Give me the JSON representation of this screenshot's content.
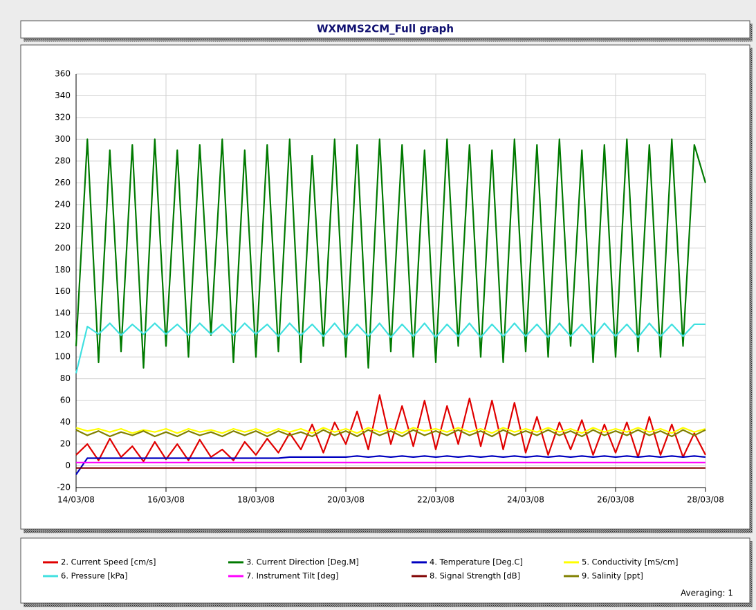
{
  "chart_data": {
    "type": "line",
    "title": "WXMMS2CM_Full graph",
    "note": "Averaging: 1",
    "x": [
      0,
      0.25,
      0.5,
      0.75,
      1,
      1.25,
      1.5,
      1.75,
      2,
      2.25,
      2.5,
      2.75,
      3,
      3.25,
      3.5,
      3.75,
      4,
      4.25,
      4.5,
      4.75,
      5,
      5.25,
      5.5,
      5.75,
      6,
      6.25,
      6.5,
      6.75,
      7,
      7.25,
      7.5,
      7.75,
      8,
      8.25,
      8.5,
      8.75,
      9,
      9.25,
      9.5,
      9.75,
      10,
      10.25,
      10.5,
      10.75,
      11,
      11.25,
      11.5,
      11.75,
      12,
      12.25,
      12.5,
      12.75,
      13,
      13.25,
      13.5,
      13.75,
      14
    ],
    "xlim": [
      0,
      14
    ],
    "xticks": [
      {
        "value": 0,
        "label": "14/03/08"
      },
      {
        "value": 2,
        "label": "16/03/08"
      },
      {
        "value": 4,
        "label": "18/03/08"
      },
      {
        "value": 6,
        "label": "20/03/08"
      },
      {
        "value": 8,
        "label": "22/03/08"
      },
      {
        "value": 10,
        "label": "24/03/08"
      },
      {
        "value": 12,
        "label": "26/03/08"
      },
      {
        "value": 14,
        "label": "28/03/08"
      }
    ],
    "ylim": [
      -20,
      360
    ],
    "yticks": [
      -20,
      0,
      20,
      40,
      60,
      80,
      100,
      120,
      140,
      160,
      180,
      200,
      220,
      240,
      260,
      280,
      300,
      320,
      340,
      360
    ],
    "grid": true,
    "series": [
      {
        "name": "2. Current Speed [cm/s]",
        "color": "#e00000",
        "values": [
          10,
          20,
          5,
          25,
          8,
          18,
          4,
          22,
          6,
          20,
          5,
          24,
          8,
          15,
          5,
          22,
          10,
          25,
          12,
          30,
          15,
          38,
          12,
          40,
          20,
          50,
          15,
          65,
          20,
          55,
          18,
          60,
          15,
          55,
          20,
          62,
          18,
          60,
          15,
          58,
          12,
          45,
          10,
          40,
          15,
          42,
          10,
          38,
          12,
          40,
          8,
          45,
          10,
          38,
          8,
          30,
          10
        ]
      },
      {
        "name": "3. Current Direction [Deg.M]",
        "color": "#007a00",
        "values": [
          110,
          300,
          95,
          290,
          105,
          295,
          90,
          300,
          110,
          290,
          100,
          295,
          120,
          300,
          95,
          290,
          100,
          295,
          105,
          300,
          95,
          285,
          110,
          300,
          100,
          295,
          90,
          300,
          105,
          295,
          100,
          290,
          95,
          300,
          110,
          295,
          100,
          290,
          95,
          300,
          105,
          295,
          100,
          300,
          110,
          290,
          95,
          295,
          100,
          300,
          105,
          295,
          100,
          300,
          110,
          295,
          260
        ]
      },
      {
        "name": "4. Temperature [Deg.C]",
        "color": "#0000c0",
        "values": [
          -8,
          7,
          7,
          7,
          7,
          7,
          7,
          7,
          7,
          7,
          7,
          7,
          7,
          7,
          7,
          7,
          7,
          7,
          7,
          8,
          8,
          8,
          8,
          8,
          8,
          9,
          8,
          9,
          8,
          9,
          8,
          9,
          8,
          9,
          8,
          9,
          8,
          9,
          8,
          9,
          8,
          9,
          8,
          9,
          8,
          9,
          8,
          9,
          8,
          9,
          8,
          9,
          8,
          9,
          8,
          9,
          8
        ]
      },
      {
        "name": "5. Conductivity [mS/cm]",
        "color": "#ffff00",
        "values": [
          35,
          32,
          34,
          31,
          34,
          30,
          33,
          31,
          34,
          30,
          34,
          31,
          33,
          30,
          34,
          31,
          34,
          30,
          34,
          31,
          34,
          30,
          35,
          31,
          34,
          30,
          35,
          31,
          34,
          30,
          35,
          32,
          34,
          31,
          35,
          31,
          34,
          30,
          35,
          31,
          34,
          31,
          35,
          31,
          34,
          30,
          35,
          31,
          34,
          31,
          35,
          31,
          34,
          30,
          35,
          31,
          34
        ]
      },
      {
        "name": "6. Pressure [kPa]",
        "color": "#40e0e0",
        "values": [
          85,
          128,
          121,
          131,
          120,
          130,
          121,
          131,
          121,
          130,
          120,
          131,
          121,
          130,
          120,
          131,
          121,
          130,
          119,
          131,
          120,
          130,
          119,
          131,
          118,
          130,
          119,
          131,
          118,
          130,
          119,
          131,
          118,
          130,
          119,
          131,
          118,
          130,
          119,
          131,
          119,
          130,
          118,
          131,
          119,
          130,
          118,
          131,
          119,
          130,
          118,
          131,
          119,
          130,
          119,
          130,
          130
        ]
      },
      {
        "name": "7. Instrument Tilt [deg]",
        "color": "#ff00ff",
        "values": [
          3,
          3,
          3,
          3,
          3,
          3,
          3,
          3,
          3,
          3,
          3,
          3,
          3,
          3,
          3,
          3,
          3,
          3,
          3,
          3,
          3,
          3,
          3,
          3,
          3,
          3,
          3,
          3,
          3,
          3,
          3,
          3,
          3,
          3,
          3,
          3,
          3,
          3,
          3,
          3,
          3,
          3,
          3,
          3,
          3,
          3,
          3,
          3,
          3,
          3,
          3,
          3,
          3,
          3,
          3,
          3,
          3
        ]
      },
      {
        "name": "8. Signal Strength [dB]",
        "color": "#800000",
        "values": [
          -2,
          -2,
          -2,
          -2,
          -2,
          -2,
          -2,
          -2,
          -2,
          -2,
          -2,
          -2,
          -2,
          -2,
          -2,
          -2,
          -2,
          -2,
          -2,
          -2,
          -2,
          -2,
          -2,
          -2,
          -2,
          -2,
          -2,
          -2,
          -2,
          -2,
          -2,
          -2,
          -2,
          -2,
          -2,
          -2,
          -2,
          -2,
          -2,
          -2,
          -2,
          -2,
          -2,
          -2,
          -2,
          -2,
          -2,
          -2,
          -2,
          -2,
          -2,
          -2,
          -2,
          -2,
          -2,
          -2,
          -2
        ]
      },
      {
        "name": "9. Salinity [ppt]",
        "color": "#808000",
        "values": [
          33,
          28,
          32,
          27,
          31,
          28,
          32,
          27,
          31,
          27,
          32,
          28,
          31,
          27,
          32,
          28,
          32,
          27,
          32,
          28,
          31,
          27,
          33,
          28,
          32,
          27,
          33,
          28,
          32,
          27,
          33,
          28,
          32,
          28,
          33,
          28,
          32,
          27,
          33,
          28,
          32,
          28,
          33,
          28,
          32,
          27,
          33,
          28,
          32,
          28,
          33,
          28,
          32,
          27,
          33,
          28,
          33
        ]
      }
    ]
  }
}
